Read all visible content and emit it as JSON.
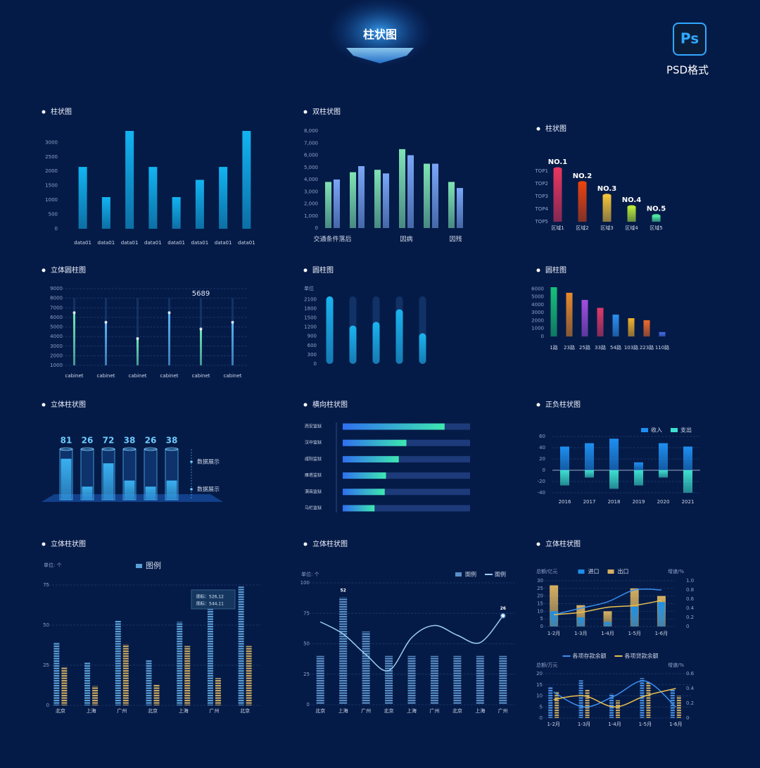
{
  "header": {
    "title": "柱状图",
    "badge": "Ps",
    "format": "PSD格式"
  },
  "chart_data": [
    {
      "type": "bar",
      "title": "柱状图",
      "categories": [
        "data01",
        "data01",
        "data01",
        "data01",
        "data01",
        "data01",
        "data01",
        "data01"
      ],
      "values": [
        2150,
        1100,
        3400,
        2150,
        1100,
        1700,
        2150,
        3400
      ],
      "color": "#12b4f2",
      "ylim": [
        0,
        3400
      ],
      "yticks": [
        0,
        500,
        1000,
        1500,
        2000,
        2500,
        3000
      ],
      "grid": false
    },
    {
      "type": "bar",
      "title": "双柱状图",
      "categories": [
        "交通条件落后",
        null,
        null,
        "因病",
        null,
        "因残"
      ],
      "series": [
        {
          "color": "#7fe3b4",
          "values": [
            3800,
            4600,
            4800,
            6500,
            5300,
            3800
          ]
        },
        {
          "color": "#7aa6f7",
          "values": [
            4000,
            5100,
            4500,
            6000,
            5300,
            3300
          ]
        }
      ],
      "ylim": [
        0,
        8000
      ],
      "yticks": [
        0,
        {
          "value": 1000,
          "label": "1,000"
        },
        {
          "value": 2000,
          "label": "2,000"
        },
        {
          "value": 3000,
          "label": "3,000"
        },
        {
          "value": 4000,
          "label": "4,000"
        },
        {
          "value": 5000,
          "label": "5,000"
        },
        {
          "value": 6000,
          "label": "6,000"
        },
        {
          "value": 7000,
          "label": "7,000"
        },
        {
          "value": 8000,
          "label": "8,000"
        }
      ],
      "grid": false
    },
    {
      "type": "rank",
      "title": "柱状图",
      "categories": [
        "区域1",
        "区域2",
        "区域3",
        "区域4",
        "区域5"
      ],
      "labels": [
        "NO.1",
        "NO.2",
        "NO.3",
        "NO.4",
        "NO.5"
      ],
      "values": [
        4,
        2.9,
        1.9,
        1,
        0.3
      ],
      "colors": [
        "#e8355f",
        "#e8430f",
        "#f3c23a",
        "#b8e83a",
        "#4de3a0"
      ],
      "ylim": [
        0,
        4
      ],
      "yticks": [
        {
          "value": 4,
          "label": "TOP1"
        },
        {
          "value": 3,
          "label": "TOP2"
        },
        {
          "value": 2,
          "label": "TOP3"
        },
        {
          "value": 1,
          "label": "TOP4"
        },
        {
          "value": 0,
          "label": "TOP5"
        }
      ]
    },
    {
      "type": "track",
      "title": "立体圆柱图",
      "categories": [
        "cabinet",
        "cabinet",
        "cabinet",
        "cabinet",
        "cabinet",
        "cabinet"
      ],
      "values": [
        6500,
        5500,
        3800,
        6500,
        4800,
        5500
      ],
      "max": 8000,
      "annotation": "5689",
      "colors": [
        "#6fe8b8",
        "#5ab4f4",
        "#6fe8b8",
        "#5ab4f4",
        "#6fe8b8",
        "#5ab4f4"
      ],
      "ylim": [
        1000,
        9000
      ],
      "yticks": [
        1000,
        2000,
        3000,
        4000,
        5000,
        6000,
        7000,
        8000,
        9000
      ],
      "grid": true
    },
    {
      "type": "track",
      "title": "圆柱图",
      "unit": "单位",
      "values": [
        2200,
        1250,
        1370,
        1780,
        1000
      ],
      "max": 2200,
      "color": "#1ab4f0",
      "rounded": true,
      "ylim": [
        0,
        2200
      ],
      "yticks": [
        0,
        300,
        600,
        900,
        1200,
        1500,
        1800,
        2100
      ]
    },
    {
      "type": "bar",
      "title": "圆柱图",
      "categories": [
        "1路",
        "23路",
        "25路",
        "33路",
        "54路",
        "103路",
        "223路",
        "110路"
      ],
      "values": [
        6200,
        5500,
        4600,
        3600,
        2750,
        2300,
        2050,
        550
      ],
      "colors": [
        "#17c27a",
        "#e98a2b",
        "#a24fe0",
        "#e03a6a",
        "#2e8ff0",
        "#f3b12b",
        "#ef6a2a",
        "#4a6ff0"
      ],
      "ylim": [
        0,
        6200
      ],
      "yticks": [
        0,
        1000,
        2000,
        3000,
        4000,
        5000,
        6000
      ],
      "grid": false
    },
    {
      "type": "glass",
      "title": "立体柱状图",
      "values": [
        81,
        26,
        72,
        38,
        26,
        38
      ],
      "color": "#3ab0f0",
      "ylim": [
        0,
        100
      ],
      "annotations": [
        "数据展示",
        "数据展示"
      ]
    },
    {
      "type": "hbar",
      "title": "横向柱状图",
      "categories": [
        "西安监狱",
        "汉中监狱",
        "咸阳监狱",
        "雁塔监狱",
        "渭南监狱",
        "马栏监狱"
      ],
      "values": [
        80,
        50,
        44,
        34,
        33,
        25
      ],
      "colors": [
        "#2f6ff0",
        "#3de8b0"
      ],
      "xlim": [
        0,
        100
      ]
    },
    {
      "type": "diverging",
      "title": "正负柱状图",
      "categories": [
        "2016",
        "2017",
        "2018",
        "2019",
        "2020",
        "2021"
      ],
      "series": [
        {
          "name": "收入",
          "color": "#1e8ff0",
          "values": [
            42,
            48,
            56,
            14,
            48,
            42
          ]
        },
        {
          "name": "支出",
          "color": "#3de0d0",
          "values": [
            -27,
            -13,
            -33,
            -27,
            -13,
            -40
          ]
        }
      ],
      "ylim": [
        -40,
        60
      ],
      "yticks": [
        -40,
        -20,
        0,
        20,
        40,
        60
      ],
      "grid": true,
      "legend": "top-right"
    },
    {
      "type": "combo",
      "title": "立体柱状图",
      "unit": "单位: 个",
      "striped": true,
      "categories": [
        "北京",
        "上海",
        "广州",
        "北京",
        "上海",
        "广州",
        "北京"
      ],
      "series": [
        {
          "name": "图例",
          "type": "bar",
          "color": "#5b9fd8",
          "values": [
            39,
            27,
            53,
            28,
            52,
            60,
            74
          ]
        },
        {
          "type": "bar",
          "color": "#c9a862",
          "values": [
            24,
            12,
            38,
            13,
            37,
            17,
            37
          ]
        }
      ],
      "tooltip": [
        "图标：526,12",
        "图标：544,11"
      ],
      "ylim": [
        0,
        75
      ],
      "yticks": [
        0,
        25,
        50,
        75
      ],
      "grid": true,
      "legend": "top"
    },
    {
      "type": "combo",
      "title": "立体柱状图",
      "unit": "单位: 个",
      "striped": true,
      "categories": [
        "北京",
        "上海",
        "广州",
        "北京",
        "上海",
        "广州",
        "北京",
        "上海",
        "广州"
      ],
      "series": [
        {
          "name": "图例",
          "type": "bar",
          "color": "#5a8fc8",
          "values": [
            40,
            88,
            60,
            40,
            40,
            40,
            40,
            40,
            40
          ]
        },
        {
          "name": "图例",
          "type": "line",
          "color": "#9ccff2",
          "values": [
            68,
            58,
            41,
            28,
            55,
            65,
            57,
            51,
            73
          ]
        }
      ],
      "annotations": [
        "52",
        "26"
      ],
      "ylim": [
        0,
        100
      ],
      "yticks": [
        0,
        25,
        50,
        75,
        100
      ],
      "grid": true,
      "legend": "top-right"
    },
    {
      "type": "combo",
      "title": "立体柱状图",
      "ylabel": "总额/亿元",
      "y2label": "增速/%",
      "overlap": true,
      "categories": [
        "1-2月",
        "1-3月",
        "1-4月",
        "1-5月",
        "1-6月"
      ],
      "series": [
        {
          "name": "进口",
          "type": "bar",
          "color": "#1a8fe8",
          "values": [
            10,
            6,
            3,
            13,
            16
          ]
        },
        {
          "name": "出口",
          "type": "bar",
          "color": "#d6b060",
          "values": [
            27,
            14,
            10,
            25,
            20
          ]
        },
        {
          "type": "line",
          "axis": "y2",
          "color": "#3a8ff0",
          "values": [
            0.26,
            0.4,
            0.54,
            0.8,
            0.8
          ]
        },
        {
          "type": "line",
          "axis": "y2",
          "color": "#e8c050",
          "values": [
            0.26,
            0.31,
            0.42,
            0.46,
            0.57
          ]
        }
      ],
      "ylim": [
        0,
        30
      ],
      "yticks": [
        0,
        5,
        10,
        15,
        20,
        25,
        30
      ],
      "y2lim": [
        0,
        1
      ],
      "y2ticks": [
        0,
        0.2,
        0.4,
        0.6,
        0.8,
        {
          "value": 1,
          "label": "1.0"
        }
      ],
      "grid": true,
      "legend": "top"
    },
    {
      "type": "combo",
      "ylabel": "总额/万元",
      "y2label": "增速/%",
      "striped": true,
      "categories": [
        "1-2月",
        "1-3月",
        "1-4月",
        "1-5月",
        "1-6月"
      ],
      "series": [
        {
          "type": "bar",
          "color": "#4a8fe0",
          "values": [
            14,
            17,
            11,
            18,
            13
          ]
        },
        {
          "type": "bar",
          "color": "#c9a862",
          "values": [
            12,
            13,
            8,
            16,
            10
          ]
        },
        {
          "name": "各项存款余额",
          "type": "line",
          "axis": "y2",
          "color": "#3a8ff0",
          "values": [
            0.35,
            0.15,
            0.3,
            0.5,
            0.15
          ]
        },
        {
          "name": "各项贷款余额",
          "type": "line",
          "axis": "y2",
          "color": "#e8c050",
          "values": [
            0.25,
            0.3,
            0.15,
            0.3,
            0.4
          ]
        }
      ],
      "ylim": [
        0,
        20
      ],
      "yticks": [
        0,
        5,
        10,
        15,
        20
      ],
      "y2lim": [
        0,
        0.6
      ],
      "y2ticks": [
        0,
        0.2,
        0.4,
        0.6
      ],
      "grid": true,
      "legend": "top"
    }
  ]
}
